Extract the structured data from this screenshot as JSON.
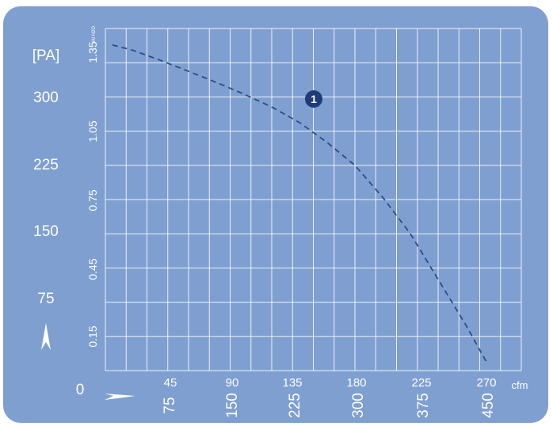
{
  "colors": {
    "panel": "#7f9fd0",
    "grid": "#ffffff",
    "curve": "#2f4a86",
    "label": "#ffffff",
    "badge": "#1f3b78"
  },
  "chart_data": {
    "type": "line",
    "primary_y_unit": "[PA]",
    "primary_y_ticks": [
      "300",
      "225",
      "150",
      "75"
    ],
    "primary_y_zero": "0",
    "secondary_y_ticks": [
      "1.35",
      "1.05",
      "0.75",
      "0.45",
      "0.15"
    ],
    "secondary_y_unit": "IN H2O",
    "x_top_ticks": [
      "45",
      "90",
      "135",
      "180",
      "225",
      "270"
    ],
    "x_top_unit": "cfm",
    "x_bottom_ticks": [
      "75",
      "150",
      "225",
      "300",
      "375",
      "450"
    ],
    "ylim": [
      0,
      375
    ],
    "xlim_cfm": [
      0,
      300
    ],
    "grid": true,
    "series": [
      {
        "marker_label": "1",
        "marker_point": [
          135,
          309
        ],
        "points": [
          [
            5,
            357
          ],
          [
            20,
            351
          ],
          [
            40,
            340
          ],
          [
            60,
            328
          ],
          [
            80,
            316
          ],
          [
            100,
            303
          ],
          [
            120,
            289
          ],
          [
            140,
            272
          ],
          [
            160,
            250
          ],
          [
            180,
            225
          ],
          [
            200,
            190
          ],
          [
            220,
            150
          ],
          [
            240,
            100
          ],
          [
            260,
            50
          ],
          [
            275,
            9
          ]
        ]
      }
    ]
  }
}
